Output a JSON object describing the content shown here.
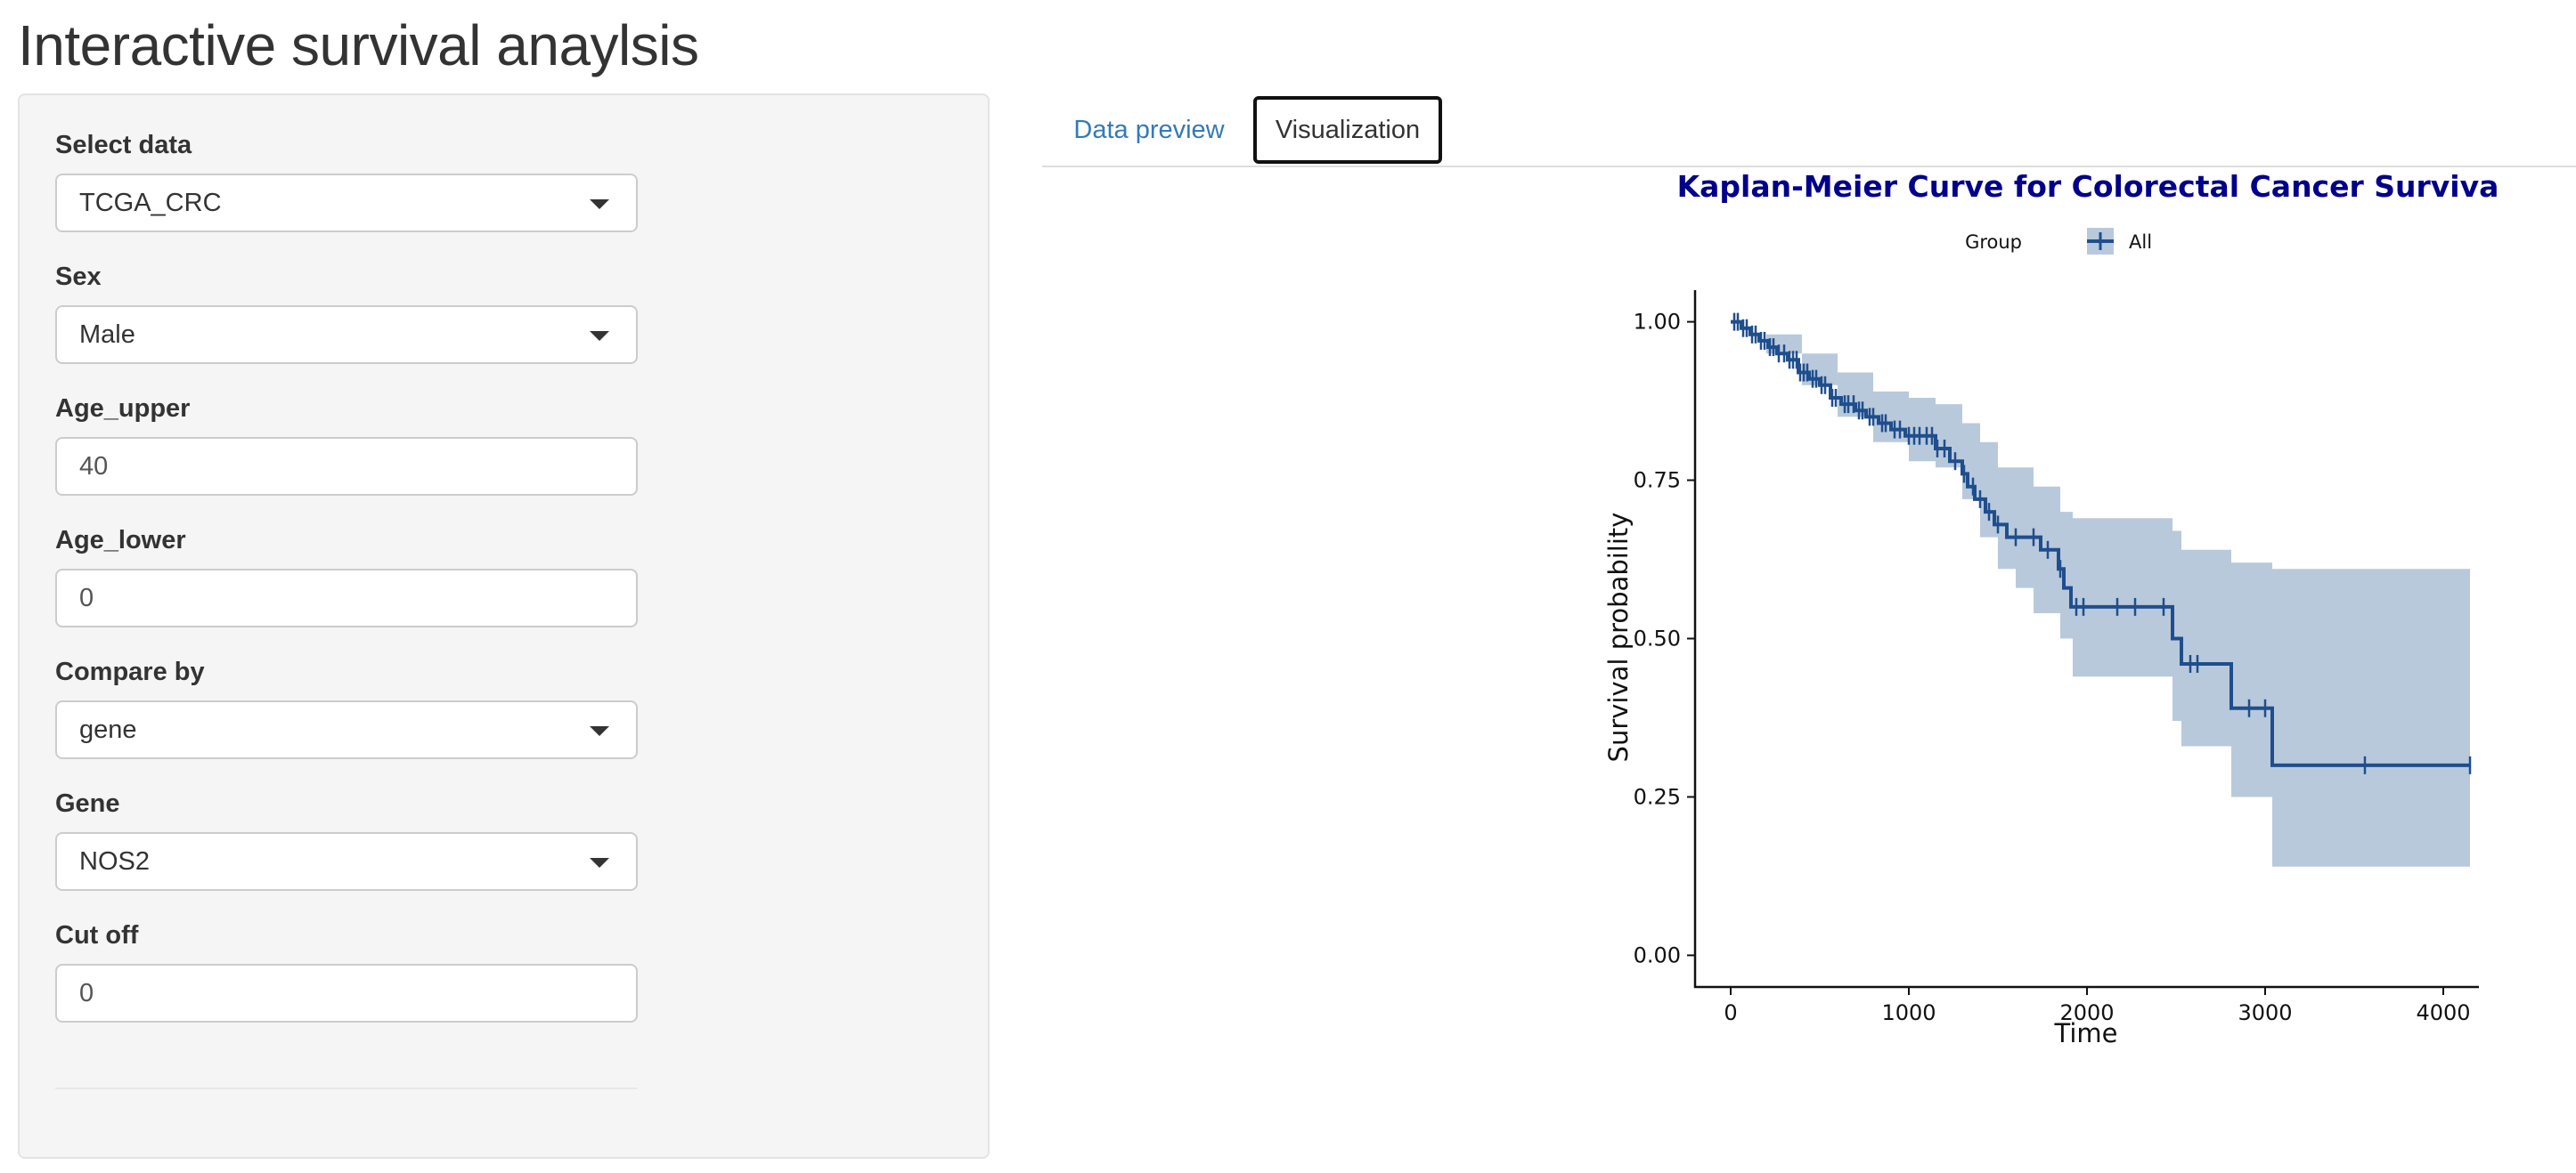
{
  "app": {
    "title": "Interactive survival anaylsis"
  },
  "sidebar": {
    "fields": [
      {
        "label": "Select data",
        "type": "select",
        "value": "TCGA_CRC"
      },
      {
        "label": "Sex",
        "type": "select",
        "value": "Male"
      },
      {
        "label": "Age_upper",
        "type": "input",
        "value": "40"
      },
      {
        "label": "Age_lower",
        "type": "input",
        "value": "0"
      },
      {
        "label": "Compare by",
        "type": "select",
        "value": "gene"
      },
      {
        "label": "Gene",
        "type": "select",
        "value": "NOS2"
      },
      {
        "label": "Cut off",
        "type": "input",
        "value": "0"
      }
    ]
  },
  "tabs": [
    {
      "label": "Data preview",
      "active": false
    },
    {
      "label": "Visualization",
      "active": true
    }
  ],
  "colors": {
    "link": "#337ab7",
    "curve": "#1f4e8c",
    "ci_band": "#b8c9dc",
    "title": "#00008b"
  },
  "chart_data": {
    "type": "line",
    "subtype": "kaplan-meier step curve with confidence band",
    "title": "Kaplan-Meier Curve for Colorectal Cancer Surviva",
    "xlabel": "Time",
    "ylabel": "Survival probability",
    "xlim": [
      -200,
      4200
    ],
    "ylim": [
      -0.05,
      1.05
    ],
    "xticks": [
      0,
      1000,
      2000,
      3000,
      4000
    ],
    "yticks": [
      0.0,
      0.25,
      0.5,
      0.75,
      1.0
    ],
    "ytick_labels": [
      "0.00",
      "0.25",
      "0.50",
      "0.75",
      "1.00"
    ],
    "grid": false,
    "legend": {
      "title": "Group",
      "position": "top",
      "entries": [
        "All"
      ]
    },
    "series": [
      {
        "name": "All",
        "steps": [
          [
            0,
            1.0
          ],
          [
            60,
            0.99
          ],
          [
            110,
            0.98
          ],
          [
            160,
            0.97
          ],
          [
            210,
            0.96
          ],
          [
            260,
            0.95
          ],
          [
            320,
            0.94
          ],
          [
            380,
            0.92
          ],
          [
            440,
            0.91
          ],
          [
            500,
            0.9
          ],
          [
            560,
            0.88
          ],
          [
            620,
            0.87
          ],
          [
            700,
            0.86
          ],
          [
            760,
            0.85
          ],
          [
            830,
            0.84
          ],
          [
            900,
            0.83
          ],
          [
            980,
            0.82
          ],
          [
            1150,
            0.8
          ],
          [
            1230,
            0.78
          ],
          [
            1300,
            0.76
          ],
          [
            1330,
            0.74
          ],
          [
            1370,
            0.72
          ],
          [
            1430,
            0.7
          ],
          [
            1480,
            0.68
          ],
          [
            1550,
            0.66
          ],
          [
            1740,
            0.64
          ],
          [
            1840,
            0.61
          ],
          [
            1870,
            0.58
          ],
          [
            1910,
            0.55
          ],
          [
            2480,
            0.5
          ],
          [
            2530,
            0.46
          ],
          [
            2810,
            0.39
          ],
          [
            3040,
            0.3
          ],
          [
            4150,
            0.3
          ]
        ],
        "ci_lower": [
          [
            0,
            1.0
          ],
          [
            200,
            0.95
          ],
          [
            400,
            0.9
          ],
          [
            600,
            0.85
          ],
          [
            800,
            0.81
          ],
          [
            1000,
            0.78
          ],
          [
            1150,
            0.77
          ],
          [
            1300,
            0.72
          ],
          [
            1400,
            0.66
          ],
          [
            1500,
            0.61
          ],
          [
            1600,
            0.58
          ],
          [
            1700,
            0.54
          ],
          [
            1850,
            0.5
          ],
          [
            1920,
            0.44
          ],
          [
            2480,
            0.37
          ],
          [
            2530,
            0.33
          ],
          [
            2810,
            0.25
          ],
          [
            3040,
            0.14
          ],
          [
            4150,
            0.14
          ]
        ],
        "ci_upper": [
          [
            0,
            1.0
          ],
          [
            200,
            0.98
          ],
          [
            400,
            0.95
          ],
          [
            600,
            0.92
          ],
          [
            800,
            0.89
          ],
          [
            1000,
            0.88
          ],
          [
            1150,
            0.87
          ],
          [
            1300,
            0.84
          ],
          [
            1400,
            0.81
          ],
          [
            1500,
            0.77
          ],
          [
            1700,
            0.74
          ],
          [
            1850,
            0.7
          ],
          [
            1920,
            0.69
          ],
          [
            2480,
            0.67
          ],
          [
            2530,
            0.64
          ],
          [
            2810,
            0.62
          ],
          [
            3040,
            0.61
          ],
          [
            4150,
            0.61
          ]
        ],
        "censor_times": [
          20,
          40,
          70,
          90,
          120,
          140,
          170,
          190,
          220,
          240,
          270,
          300,
          330,
          350,
          370,
          390,
          410,
          430,
          460,
          480,
          510,
          530,
          570,
          590,
          640,
          660,
          690,
          720,
          740,
          780,
          800,
          850,
          870,
          920,
          950,
          1000,
          1030,
          1060,
          1100,
          1130,
          1160,
          1200,
          1260,
          1310,
          1360,
          1400,
          1450,
          1500,
          1600,
          1700,
          1780,
          1850,
          1940,
          1980,
          2170,
          2270,
          2430,
          2580,
          2620,
          2910,
          3000,
          3560,
          4150
        ]
      }
    ]
  }
}
